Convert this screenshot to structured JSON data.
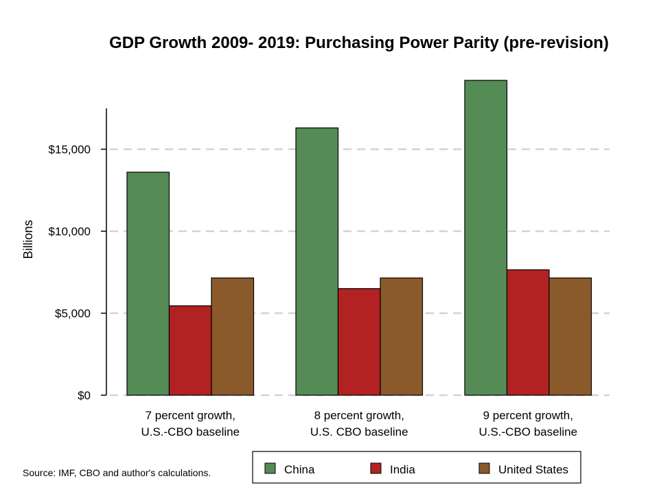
{
  "chart_data": {
    "type": "bar",
    "title": "GDP Growth 2009- 2019:  Purchasing Power Parity (pre-revision)",
    "ylabel": "Billions",
    "xlabel": "",
    "categories": [
      [
        "7 percent growth,",
        "U.S.-CBO baseline"
      ],
      [
        "8 percent growth,",
        "U.S. CBO baseline"
      ],
      [
        "9 percent growth,",
        "U.S.-CBO baseline"
      ]
    ],
    "series": [
      {
        "name": "China",
        "color": "#558b55",
        "values": [
          13600,
          16300,
          19200
        ]
      },
      {
        "name": "India",
        "color": "#b22222",
        "values": [
          5450,
          6500,
          7650
        ]
      },
      {
        "name": "United States",
        "color": "#8b5a2b",
        "values": [
          7150,
          7150,
          7150
        ]
      }
    ],
    "ylim": [
      0,
      20000
    ],
    "yticks": [
      0,
      5000,
      10000,
      15000
    ],
    "ytick_labels": [
      "$0",
      "$5,000",
      "$10,000",
      "$15,000"
    ],
    "grid": true,
    "legend_position": "bottom",
    "source": "Source: IMF, CBO and author's calculations."
  }
}
